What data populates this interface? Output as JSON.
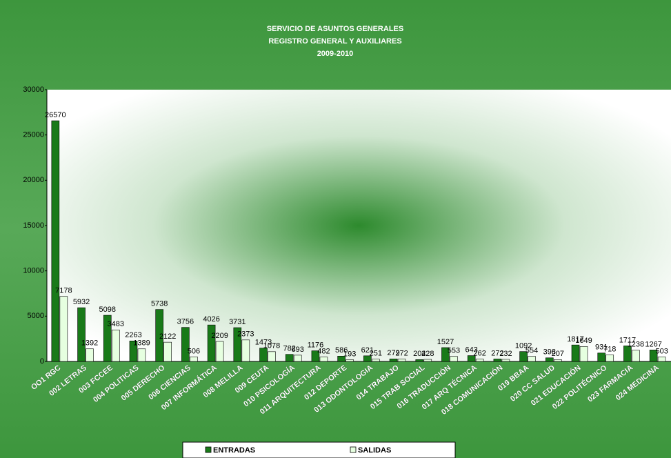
{
  "chart_data": {
    "type": "bar",
    "title": "SERVICIO DE ASUNTOS GENERALES",
    "subtitle": [
      "REGISTRO GENERAL Y AUXILIARES",
      "2009-2010"
    ],
    "categories": [
      "OO1 RGC",
      "002 LETRAS",
      "003 FCCEE",
      "004 POLITICAS",
      "005 DERECHO",
      "006 CIENCIAS",
      "007 INFORMÁTICA",
      "008 MELILLA",
      "009 CEUTA",
      "010 PSICOLOGÍA",
      "011 ARQUITECTURA",
      "012 DEPORTE",
      "013 ODONTOLOGIA",
      "014 TRABAJO",
      "015 TRAB SOCIAL",
      "016 TRADUCCIÓN",
      "017 ARQ TÉCNICA",
      "018 COMUNICACIÓN",
      "019 BBAA",
      "020 CC SALUD",
      "021 EDUCACIÓN",
      "022 POLITÉCNICO",
      "023 FARMACIA",
      "024 MEDICINA"
    ],
    "series": [
      {
        "name": "ENTRADAS",
        "color": "#197a19",
        "values": [
          26570,
          5932,
          5098,
          2263,
          5738,
          3756,
          4026,
          3731,
          1473,
          782,
          1176,
          586,
          621,
          279,
          204,
          1527,
          643,
          272,
          1092,
          398,
          1817,
          931,
          1717,
          1267
        ]
      },
      {
        "name": "SALIDAS",
        "color": "#e6ffe0",
        "values": [
          7178,
          1392,
          3483,
          1389,
          2122,
          506,
          2209,
          2373,
          1078,
          693,
          482,
          193,
          251,
          272,
          228,
          553,
          262,
          232,
          554,
          207,
          1649,
          718,
          1238,
          503
        ]
      }
    ],
    "ylim": [
      0,
      30000
    ],
    "yticks": [
      0,
      5000,
      10000,
      15000,
      20000,
      25000,
      30000
    ],
    "grid": false,
    "legend": "bottom"
  }
}
